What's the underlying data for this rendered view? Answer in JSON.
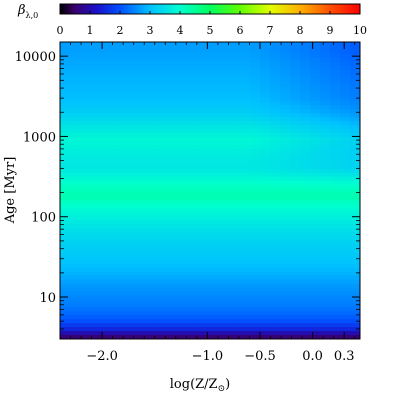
{
  "chart_data": {
    "type": "heatmap",
    "title": "",
    "colorbar": {
      "label_symbol": "β",
      "label_subscript": "λ,0",
      "range": [
        0,
        10
      ],
      "ticks": [
        "0",
        "1",
        "2",
        "3",
        "4",
        "5",
        "6",
        "7",
        "8",
        "9",
        "10"
      ]
    },
    "xlabel": {
      "main": "log(Z/Z",
      "sub": "⊙",
      "close": ")"
    },
    "ylabel": "Age [Myr]",
    "x_scale": "linear",
    "y_scale": "log",
    "xlim": [
      -2.4,
      0.45
    ],
    "ylim": [
      3,
      15000
    ],
    "x_ticks": [
      {
        "value": -2.0,
        "label": "−2.0"
      },
      {
        "value": -1.0,
        "label": "−1.0"
      },
      {
        "value": -0.5,
        "label": "−0.5"
      },
      {
        "value": 0.0,
        "label": "0.0"
      },
      {
        "value": 0.3,
        "label": "0.3"
      }
    ],
    "y_ticks": [
      {
        "value": 10,
        "label": "10"
      },
      {
        "value": 100,
        "label": "100"
      },
      {
        "value": 1000,
        "label": "1000"
      },
      {
        "value": 10000,
        "label": "10000"
      }
    ],
    "profile_age": [
      3,
      4,
      5,
      6,
      8,
      10,
      15,
      20,
      30,
      50,
      80,
      120,
      180,
      250,
      400,
      600,
      900,
      1300,
      2000,
      3000,
      5000,
      8000,
      12000
    ],
    "profile_beta": [
      0.3,
      1.5,
      2.0,
      2.2,
      2.4,
      2.5,
      2.7,
      2.9,
      3.1,
      3.3,
      3.6,
      3.9,
      4.3,
      4.1,
      3.6,
      3.7,
      3.9,
      3.6,
      3.2,
      3.0,
      2.9,
      2.8,
      2.7
    ],
    "metal_rich_offset": -0.6
  }
}
